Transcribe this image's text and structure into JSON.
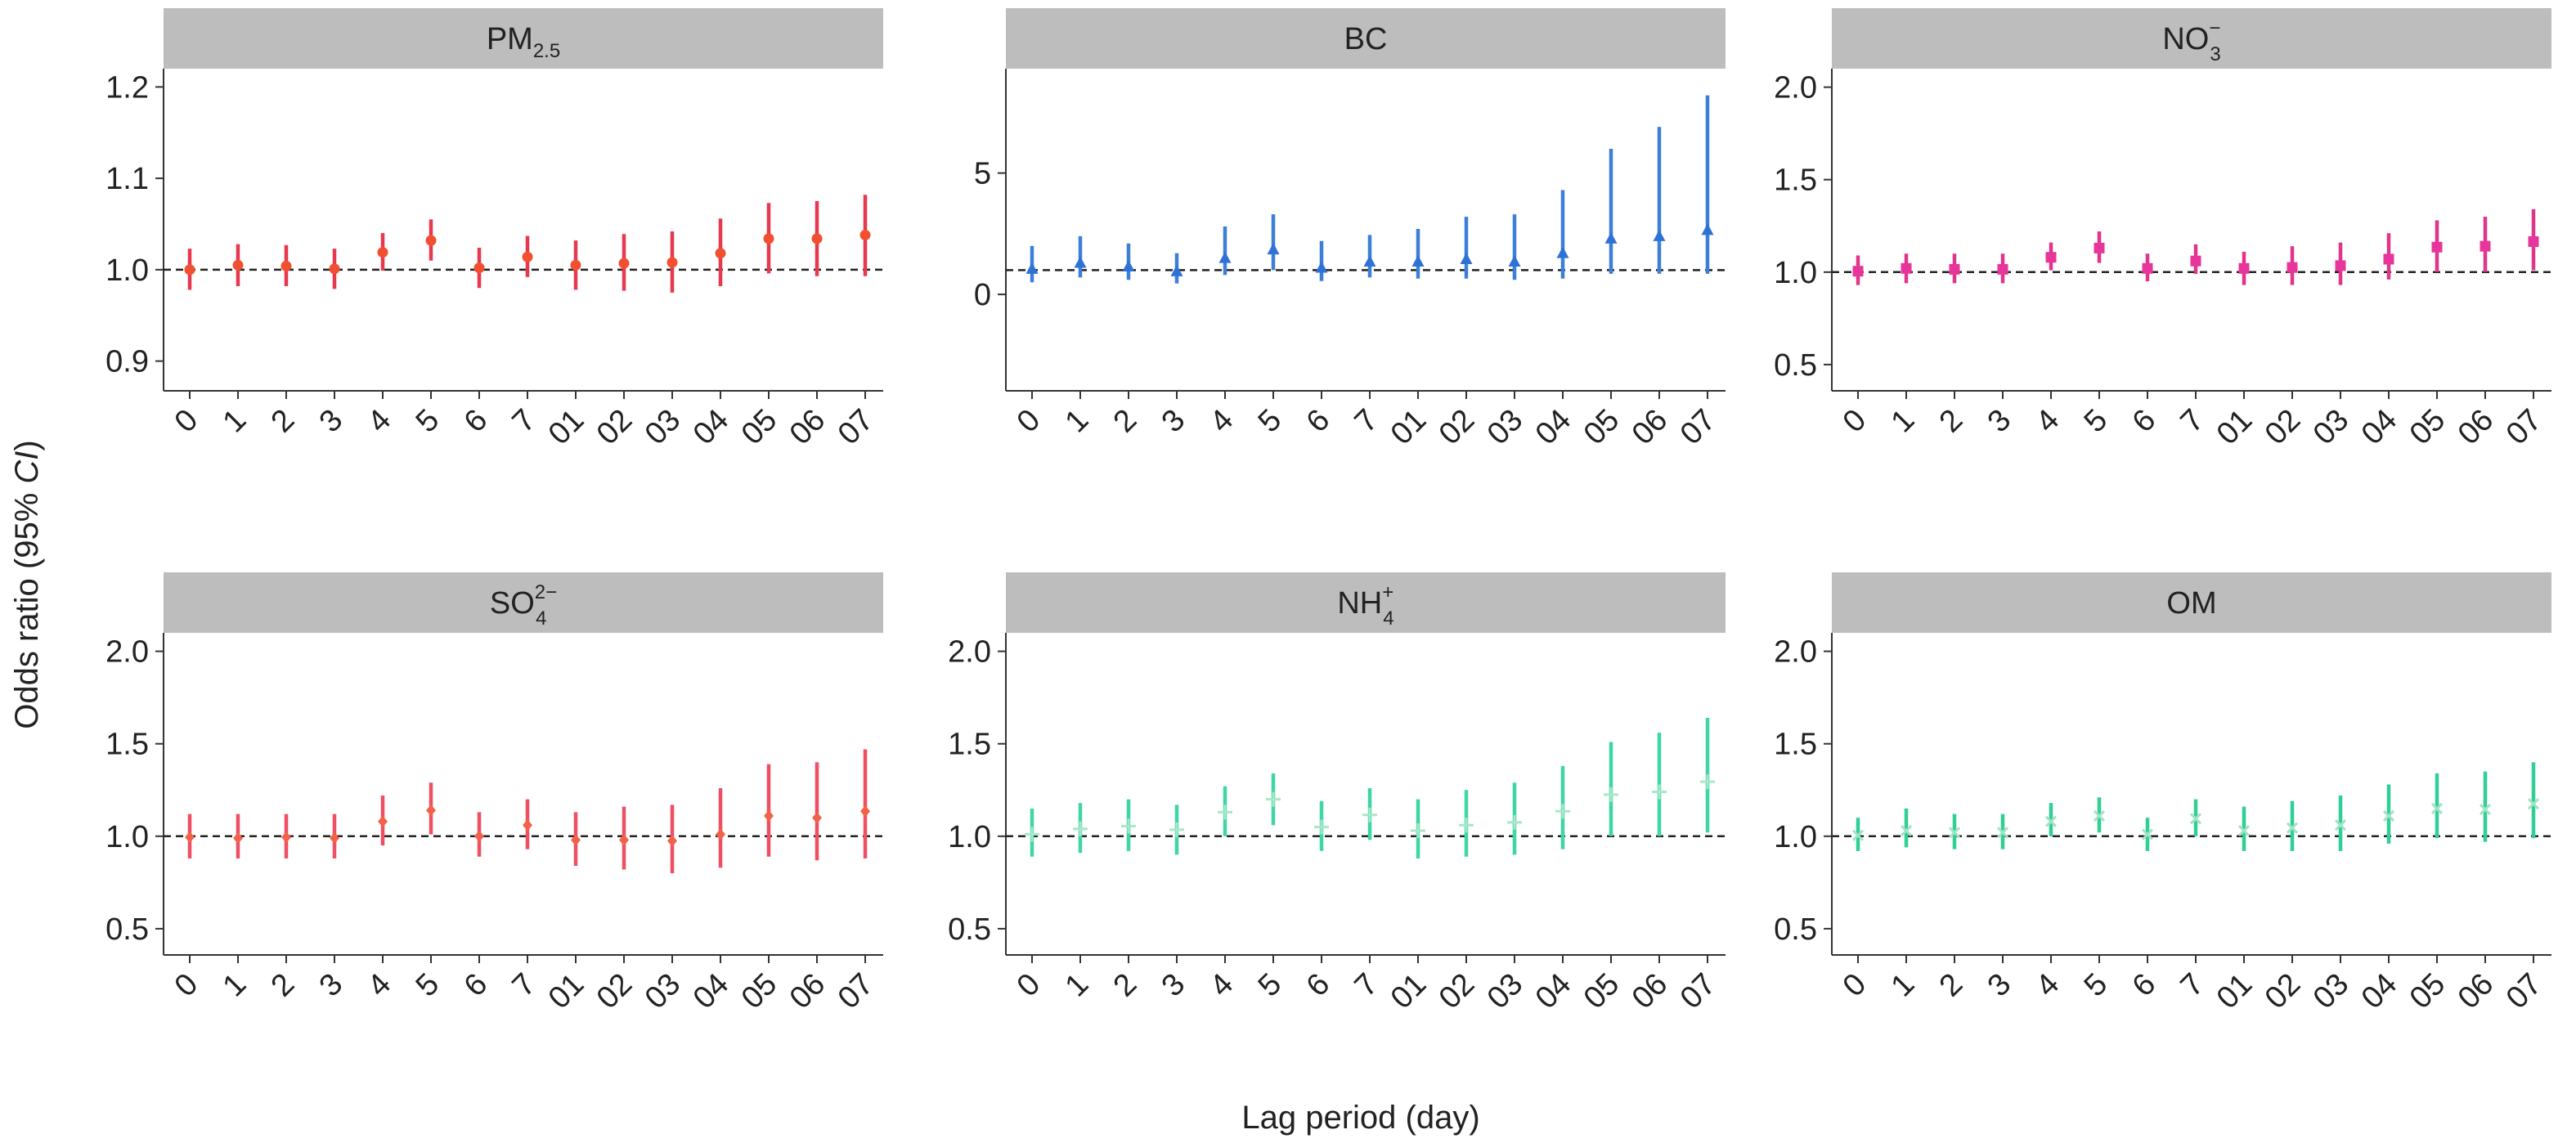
{
  "figure": {
    "ylabel": "Odds ratio (95% CI)",
    "ylabel_plain": "Odds ratio (95% ",
    "ylabel_italic": "CI",
    "ylabel_close": ")",
    "xlabel": "Lag period (day)"
  },
  "chart_data": [
    {
      "type": "scatter",
      "panel": "PM2.5",
      "strip_main": "PM",
      "strip_sub": "2.5",
      "strip_sup": "",
      "marker": "circle",
      "color": "#e8384f",
      "categories": [
        "0",
        "1",
        "2",
        "3",
        "4",
        "5",
        "6",
        "7",
        "01",
        "02",
        "03",
        "04",
        "05",
        "06",
        "07"
      ],
      "ylim": [
        0.88,
        1.22
      ],
      "yticks": [
        "0.9",
        "1.0",
        "1.1",
        "1.2"
      ],
      "reference_line": 1.0,
      "values": [
        1.0,
        1.005,
        1.004,
        1.001,
        1.019,
        1.032,
        1.002,
        1.014,
        1.005,
        1.007,
        1.008,
        1.018,
        1.034,
        1.034,
        1.038
      ],
      "lower": [
        0.978,
        0.982,
        0.982,
        0.979,
        0.999,
        1.01,
        0.98,
        0.992,
        0.978,
        0.977,
        0.975,
        0.982,
        0.996,
        0.993,
        0.993
      ],
      "upper": [
        1.023,
        1.028,
        1.027,
        1.023,
        1.04,
        1.055,
        1.024,
        1.037,
        1.032,
        1.039,
        1.042,
        1.056,
        1.073,
        1.075,
        1.082
      ]
    },
    {
      "type": "scatter",
      "panel": "BC",
      "strip_main": "BC",
      "strip_sub": "",
      "strip_sup": "",
      "marker": "triangle",
      "color": "#3b7fd9",
      "categories": [
        "0",
        "1",
        "2",
        "3",
        "4",
        "5",
        "6",
        "7",
        "01",
        "02",
        "03",
        "04",
        "05",
        "06",
        "07"
      ],
      "ylim": [
        -3.5,
        9.3
      ],
      "yticks": [
        "0",
        "5"
      ],
      "reference_line": 1.0,
      "values": [
        1.05,
        1.3,
        1.15,
        0.95,
        1.5,
        1.85,
        1.1,
        1.35,
        1.35,
        1.45,
        1.35,
        1.7,
        2.3,
        2.4,
        2.65
      ],
      "lower": [
        0.5,
        0.7,
        0.6,
        0.45,
        0.8,
        1.0,
        0.55,
        0.7,
        0.65,
        0.65,
        0.6,
        0.65,
        0.85,
        0.85,
        0.85
      ],
      "upper": [
        2.0,
        2.4,
        2.1,
        1.7,
        2.8,
        3.3,
        2.2,
        2.45,
        2.7,
        3.2,
        3.3,
        4.3,
        6.0,
        6.9,
        8.2
      ]
    },
    {
      "type": "scatter",
      "panel": "NO3-",
      "strip_main": "NO",
      "strip_sub": "3",
      "strip_sup": "−",
      "marker": "square",
      "color": "#e0358a",
      "categories": [
        "0",
        "1",
        "2",
        "3",
        "4",
        "5",
        "6",
        "7",
        "01",
        "02",
        "03",
        "04",
        "05",
        "06",
        "07"
      ],
      "ylim": [
        0.42,
        2.1
      ],
      "yticks": [
        "0.5",
        "1.0",
        "1.5",
        "2.0"
      ],
      "reference_line": 1.0,
      "values": [
        1.005,
        1.02,
        1.015,
        1.015,
        1.08,
        1.13,
        1.02,
        1.06,
        1.02,
        1.025,
        1.035,
        1.07,
        1.135,
        1.14,
        1.165
      ],
      "lower": [
        0.93,
        0.94,
        0.94,
        0.94,
        1.01,
        1.05,
        0.95,
        0.99,
        0.93,
        0.93,
        0.93,
        0.96,
        1.0,
        1.0,
        1.01
      ],
      "upper": [
        1.09,
        1.1,
        1.1,
        1.1,
        1.16,
        1.22,
        1.1,
        1.15,
        1.11,
        1.14,
        1.16,
        1.21,
        1.28,
        1.3,
        1.34
      ]
    },
    {
      "type": "scatter",
      "panel": "SO42-",
      "strip_main": "SO",
      "strip_sub": "4",
      "strip_sup": "2−",
      "marker": "diamond",
      "color": "#ef4f63",
      "categories": [
        "0",
        "1",
        "2",
        "3",
        "4",
        "5",
        "6",
        "7",
        "01",
        "02",
        "03",
        "04",
        "05",
        "06",
        "07"
      ],
      "ylim": [
        0.42,
        2.1
      ],
      "yticks": [
        "0.5",
        "1.0",
        "1.5",
        "2.0"
      ],
      "reference_line": 1.0,
      "values": [
        0.995,
        0.99,
        0.995,
        0.99,
        1.08,
        1.14,
        1.0,
        1.06,
        0.98,
        0.98,
        0.975,
        1.01,
        1.11,
        1.1,
        1.135
      ],
      "lower": [
        0.88,
        0.88,
        0.88,
        0.88,
        0.95,
        1.01,
        0.89,
        0.93,
        0.84,
        0.82,
        0.8,
        0.83,
        0.89,
        0.87,
        0.88
      ],
      "upper": [
        1.12,
        1.12,
        1.12,
        1.12,
        1.22,
        1.29,
        1.13,
        1.2,
        1.13,
        1.16,
        1.17,
        1.26,
        1.39,
        1.4,
        1.47
      ]
    },
    {
      "type": "scatter",
      "panel": "NH4+",
      "strip_main": "NH",
      "strip_sub": "4",
      "strip_sup": "+",
      "marker": "plus",
      "color": "#3fd6a6",
      "categories": [
        "0",
        "1",
        "2",
        "3",
        "4",
        "5",
        "6",
        "7",
        "01",
        "02",
        "03",
        "04",
        "05",
        "06",
        "07"
      ],
      "ylim": [
        0.42,
        2.1
      ],
      "yticks": [
        "0.5",
        "1.0",
        "1.5",
        "2.0"
      ],
      "reference_line": 1.0,
      "values": [
        1.01,
        1.04,
        1.055,
        1.035,
        1.13,
        1.2,
        1.05,
        1.115,
        1.03,
        1.06,
        1.075,
        1.135,
        1.225,
        1.24,
        1.295
      ],
      "lower": [
        0.89,
        0.91,
        0.92,
        0.9,
        1.0,
        1.06,
        0.92,
        0.98,
        0.88,
        0.89,
        0.9,
        0.93,
        1.0,
        1.0,
        1.02
      ],
      "upper": [
        1.15,
        1.18,
        1.2,
        1.17,
        1.27,
        1.34,
        1.19,
        1.26,
        1.2,
        1.25,
        1.29,
        1.38,
        1.51,
        1.56,
        1.64
      ]
    },
    {
      "type": "scatter",
      "panel": "OM",
      "strip_main": "OM",
      "strip_sub": "",
      "strip_sup": "",
      "marker": "x",
      "color": "#2fcf96",
      "categories": [
        "0",
        "1",
        "2",
        "3",
        "4",
        "5",
        "6",
        "7",
        "01",
        "02",
        "03",
        "04",
        "05",
        "06",
        "07"
      ],
      "ylim": [
        0.42,
        2.1
      ],
      "yticks": [
        "0.5",
        "1.0",
        "1.5",
        "2.0"
      ],
      "reference_line": 1.0,
      "values": [
        1.005,
        1.03,
        1.02,
        1.02,
        1.08,
        1.11,
        1.01,
        1.095,
        1.03,
        1.045,
        1.06,
        1.11,
        1.15,
        1.145,
        1.175
      ],
      "lower": [
        0.92,
        0.94,
        0.93,
        0.93,
        1.0,
        1.02,
        0.92,
        1.0,
        0.92,
        0.92,
        0.92,
        0.96,
        0.99,
        0.97,
        0.99
      ],
      "upper": [
        1.1,
        1.15,
        1.12,
        1.12,
        1.18,
        1.21,
        1.1,
        1.2,
        1.16,
        1.19,
        1.22,
        1.28,
        1.34,
        1.35,
        1.4
      ]
    }
  ]
}
